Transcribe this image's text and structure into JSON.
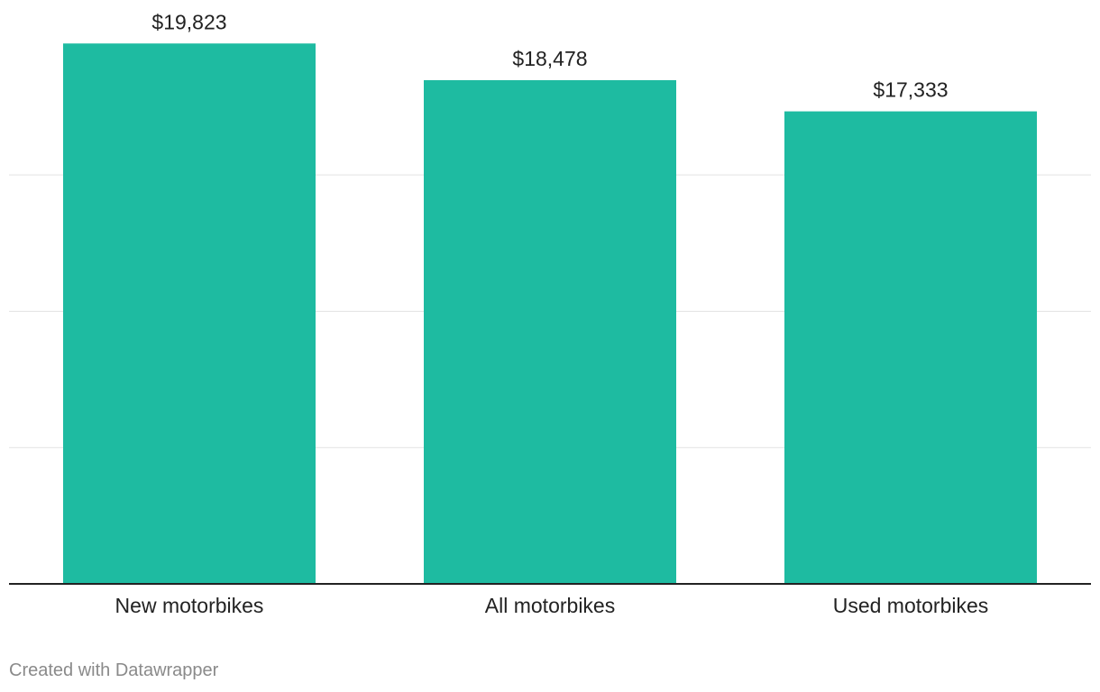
{
  "chart_data": {
    "type": "bar",
    "title": "",
    "xlabel": "",
    "ylabel": "",
    "categories": [
      "New motorbikes",
      "All motorbikes",
      "Used motorbikes"
    ],
    "values": [
      19823,
      18478,
      17333
    ],
    "value_labels": [
      "$19,823",
      "$18,478",
      "$17,333"
    ],
    "ylim": [
      0,
      20000
    ],
    "gridlines": [
      5000,
      10000,
      15000
    ],
    "grid": true,
    "legend": "none",
    "bar_color": "#1ebba1"
  },
  "footer": {
    "credit": "Created with Datawrapper"
  }
}
